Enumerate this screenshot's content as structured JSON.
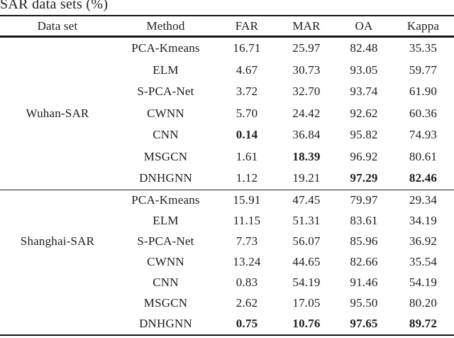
{
  "caption": "SAR data sets (%)",
  "table": {
    "columns": [
      "Data set",
      "Method",
      "FAR",
      "MAR",
      "OA",
      "Kappa"
    ],
    "groups": [
      {
        "dataset": "Wuhan-SAR",
        "dataset_row_index": 3,
        "rows": [
          {
            "method": "PCA-Kmeans",
            "far": "16.71",
            "mar": "25.97",
            "oa": "82.48",
            "kappa": "35.35",
            "bold": []
          },
          {
            "method": "ELM",
            "far": "4.67",
            "mar": "30.73",
            "oa": "93.05",
            "kappa": "59.77",
            "bold": []
          },
          {
            "method": "S-PCA-Net",
            "far": "3.72",
            "mar": "32.70",
            "oa": "93.74",
            "kappa": "61.90",
            "bold": []
          },
          {
            "method": "CWNN",
            "far": "5.70",
            "mar": "24.42",
            "oa": "92.62",
            "kappa": "60.36",
            "bold": []
          },
          {
            "method": "CNN",
            "far": "0.14",
            "mar": "36.84",
            "oa": "95.82",
            "kappa": "74.93",
            "bold": [
              "far"
            ]
          },
          {
            "method": "MSGCN",
            "far": "1.61",
            "mar": "18.39",
            "oa": "96.92",
            "kappa": "80.61",
            "bold": [
              "mar"
            ]
          },
          {
            "method": "DNHGNN",
            "far": "1.12",
            "mar": "19.21",
            "oa": "97.29",
            "kappa": "82.46",
            "bold": [
              "oa",
              "kappa"
            ]
          }
        ]
      },
      {
        "dataset": "Shanghai-SAR",
        "dataset_row_index": 2,
        "rows": [
          {
            "method": "PCA-Kmeans",
            "far": "15.91",
            "mar": "47.45",
            "oa": "79.97",
            "kappa": "29.34",
            "bold": []
          },
          {
            "method": "ELM",
            "far": "11.15",
            "mar": "51.31",
            "oa": "83.61",
            "kappa": "34.19",
            "bold": []
          },
          {
            "method": "S-PCA-Net",
            "far": "7.73",
            "mar": "56.07",
            "oa": "85.96",
            "kappa": "36.92",
            "bold": []
          },
          {
            "method": "CWNN",
            "far": "13.24",
            "mar": "44.65",
            "oa": "82.66",
            "kappa": "35.54",
            "bold": []
          },
          {
            "method": "CNN",
            "far": "0.83",
            "mar": "54.19",
            "oa": "91.46",
            "kappa": "54.19",
            "bold": []
          },
          {
            "method": "MSGCN",
            "far": "2.62",
            "mar": "17.05",
            "oa": "95.50",
            "kappa": "80.20",
            "bold": []
          },
          {
            "method": "DNHGNN",
            "far": "0.75",
            "mar": "10.76",
            "oa": "97.65",
            "kappa": "89.72",
            "bold": [
              "far",
              "mar",
              "oa",
              "kappa"
            ]
          }
        ]
      }
    ]
  }
}
